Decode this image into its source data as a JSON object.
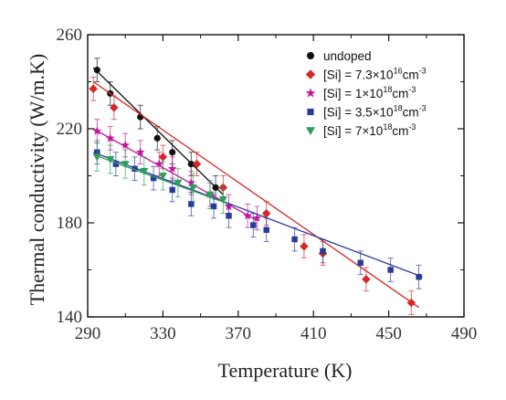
{
  "chart_data": {
    "type": "scatter",
    "title": "",
    "xlabel": "Temperature (K)",
    "ylabel": "Thermal conductivity (W/m.K)",
    "xlim": [
      290,
      490
    ],
    "ylim": [
      140,
      260
    ],
    "xticks": [
      290,
      330,
      370,
      410,
      450,
      490
    ],
    "yticks": [
      140,
      180,
      220,
      260
    ],
    "x_tick_labels": [
      "290",
      "330",
      "370",
      "410",
      "450",
      "490"
    ],
    "y_tick_labels": [
      "140",
      "180",
      "220",
      "260"
    ],
    "legend_placement": "top-right",
    "grid": false,
    "series": [
      {
        "name": "undoped",
        "legend_parts": [
          "undoped"
        ],
        "marker": "circle",
        "color": "#111111",
        "fit_line": [
          [
            293,
            246
          ],
          [
            362,
            192
          ]
        ],
        "x": [
          295,
          302,
          318,
          327,
          335,
          345,
          358
        ],
        "y": [
          245,
          235,
          225,
          216,
          210,
          205,
          195
        ],
        "error": [
          5,
          5,
          5,
          5,
          5,
          5,
          5
        ]
      },
      {
        "name": "[Si] = 7.3×10^16 cm^-3",
        "legend_parts": [
          "[Si] = 7.3×10",
          "16",
          "cm",
          "-3"
        ],
        "marker": "diamond",
        "color": "#d62728",
        "fit_line": [
          [
            293,
            240
          ],
          [
            466,
            144
          ]
        ],
        "x": [
          293,
          304,
          330,
          348,
          362,
          385,
          405,
          415,
          438,
          462
        ],
        "y": [
          237,
          229,
          208,
          205,
          195,
          184,
          170,
          167,
          156,
          146
        ],
        "error": [
          5,
          5,
          5,
          5,
          5,
          5,
          5,
          5,
          5,
          5
        ]
      },
      {
        "name": "[Si] = 1×10^18 cm^-3",
        "legend_parts": [
          "[Si] = 1×10",
          "18",
          "cm",
          "-3"
        ],
        "marker": "star",
        "color": "#c2189b",
        "fit_line": [
          [
            293,
            220
          ],
          [
            380,
            181
          ]
        ],
        "x": [
          295,
          302,
          310,
          318,
          328,
          335,
          345,
          355,
          365,
          375,
          380
        ],
        "y": [
          219,
          216,
          213,
          210,
          205,
          203,
          197,
          192,
          187,
          183,
          182
        ],
        "error": [
          5,
          5,
          5,
          5,
          5,
          5,
          5,
          5,
          5,
          5,
          5
        ]
      },
      {
        "name": "[Si] = 3.5×10^18 cm^-3",
        "legend_parts": [
          "[Si] = 3.5×10",
          "18",
          "cm",
          "-3"
        ],
        "marker": "square",
        "color": "#2a3a9a",
        "fit_line": [
          [
            293,
            210
          ],
          [
            468,
            157
          ]
        ],
        "x": [
          295,
          305,
          315,
          325,
          335,
          345,
          357,
          365,
          378,
          385,
          400,
          415,
          435,
          451,
          466
        ],
        "y": [
          210,
          205,
          203,
          199,
          194,
          188,
          187,
          183,
          179,
          177,
          173,
          168,
          163,
          160,
          157
        ],
        "error": [
          5,
          5,
          5,
          5,
          5,
          5,
          5,
          5,
          5,
          5,
          5,
          5,
          5,
          5,
          5
        ]
      },
      {
        "name": "[Si] = 7×10^18 cm^-3",
        "legend_parts": [
          "[Si] = 7×10",
          "18",
          "cm",
          "-3"
        ],
        "marker": "triangle-down",
        "color": "#2e9e5b",
        "fit_line": [
          [
            293,
            209
          ],
          [
            365,
            188
          ]
        ],
        "x": [
          295,
          302,
          310,
          320,
          330,
          338,
          346,
          355,
          362
        ],
        "y": [
          208,
          207,
          205,
          202,
          200,
          197,
          195,
          192,
          190
        ],
        "error": [
          6,
          6,
          6,
          6,
          6,
          6,
          6,
          6,
          6
        ]
      }
    ]
  }
}
